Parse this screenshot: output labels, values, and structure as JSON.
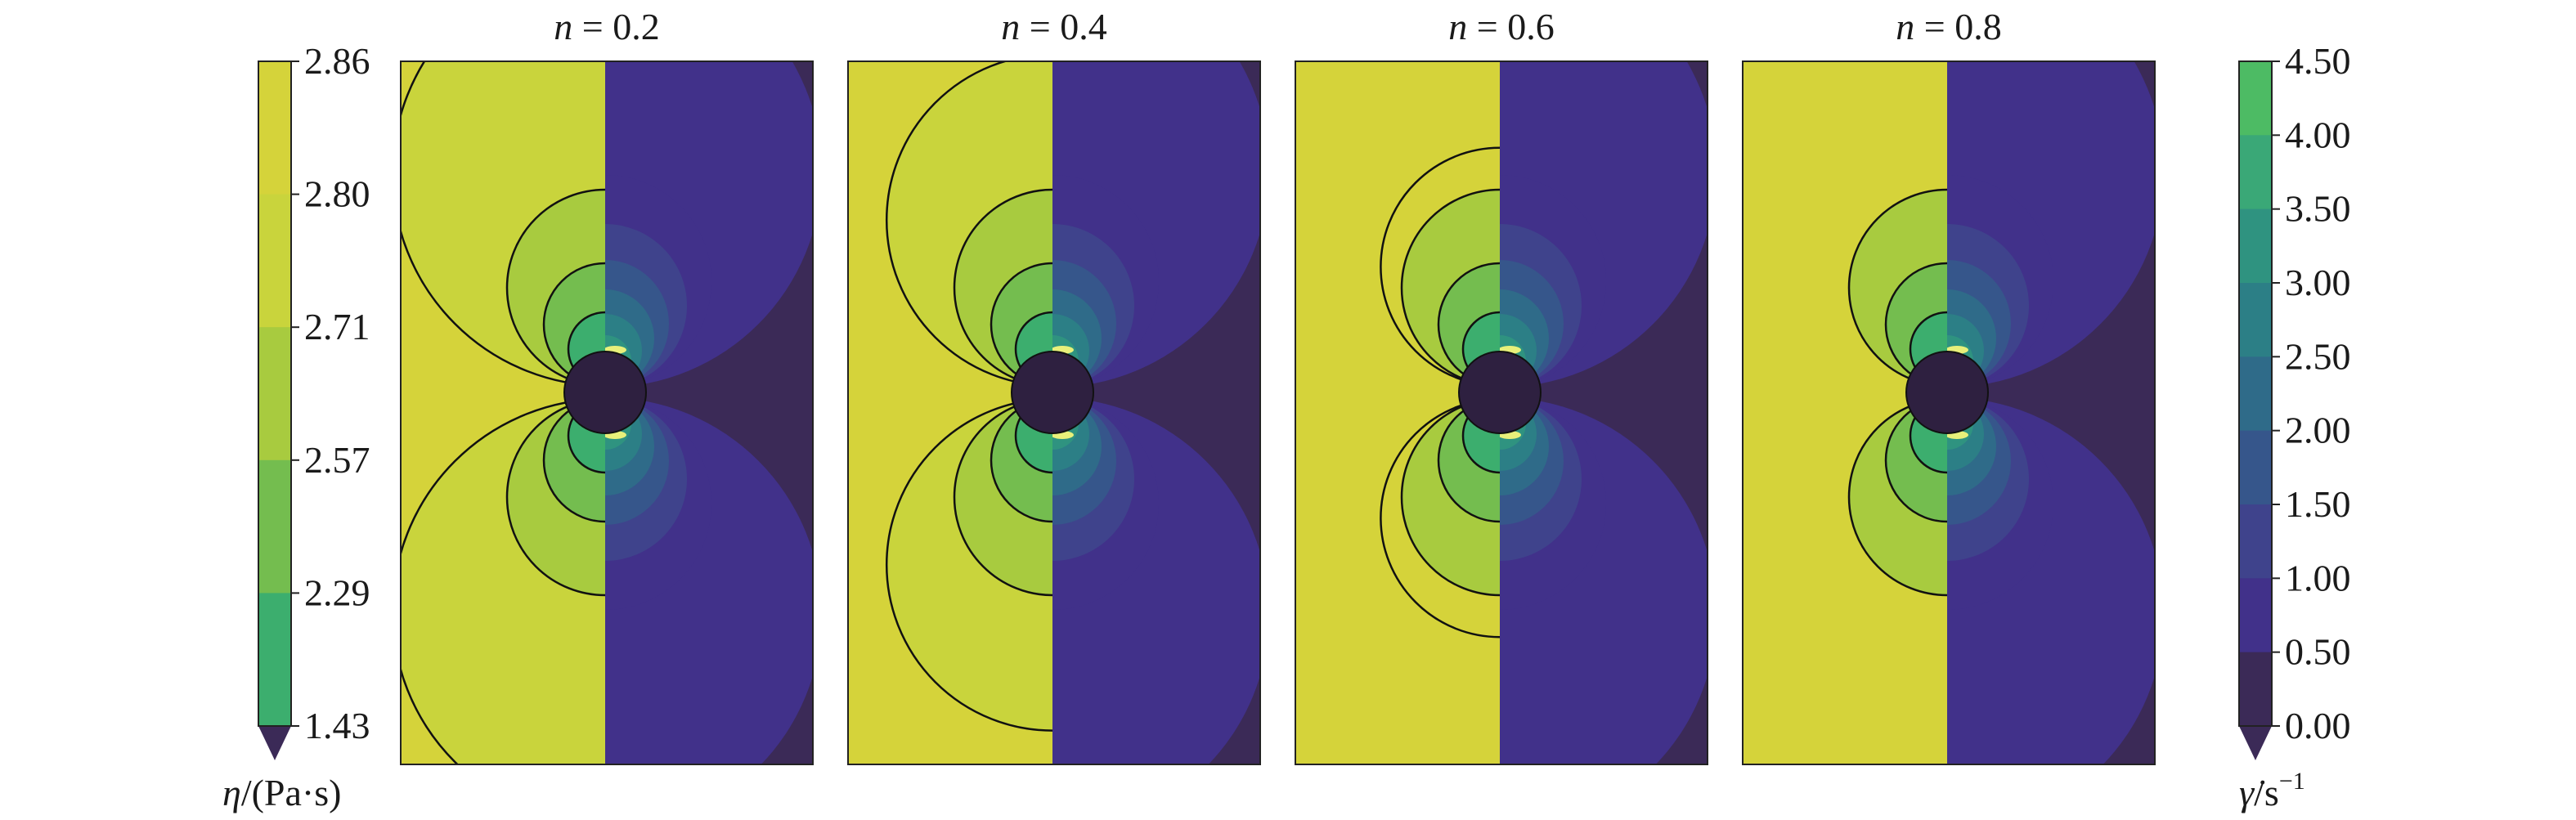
{
  "panels": [
    {
      "title_var": "n",
      "title_rest": " = 0.2",
      "title": "n = 0.2",
      "extent": 1.0
    },
    {
      "title_var": "n",
      "title_rest": " = 0.4",
      "title": "n = 0.4",
      "extent": 0.78
    },
    {
      "title_var": "n",
      "title_rest": " = 0.6",
      "title": "n = 0.6",
      "extent": 0.56
    },
    {
      "title_var": "n",
      "title_rest": " = 0.8",
      "title": "n = 0.8",
      "extent": 0.36
    }
  ],
  "viscosity_colorbar": {
    "label_var": "η",
    "label_unit": "/(Pa·s)",
    "ticks": [
      "2.86",
      "2.80",
      "2.71",
      "2.57",
      "2.29",
      "1.43"
    ],
    "colors": [
      "#d5d33a",
      "#c9d43c",
      "#a8cb3f",
      "#74bd4f",
      "#3cae6e"
    ],
    "extend_color": "#3b2a57"
  },
  "shear_rate_colorbar": {
    "label_var": "γ̇",
    "label_unit": "/s",
    "label_exp": "−1",
    "ticks": [
      "4.50",
      "4.00",
      "3.50",
      "3.00",
      "2.50",
      "2.00",
      "1.50",
      "1.00",
      "0.50",
      "0.00"
    ],
    "colors": [
      "#4dbb64",
      "#3aa877",
      "#2f9380",
      "#2c7f86",
      "#2f6b89",
      "#36568b",
      "#3f438c",
      "#41318a",
      "#3b2a57"
    ],
    "extend_color": "#3b2a57"
  },
  "colors": {
    "left_background": "#d5d33a",
    "right_background": "#41318a",
    "right_far": "#3b2a57",
    "cylinder": "#2e2040",
    "contour_line": "#111111"
  }
}
